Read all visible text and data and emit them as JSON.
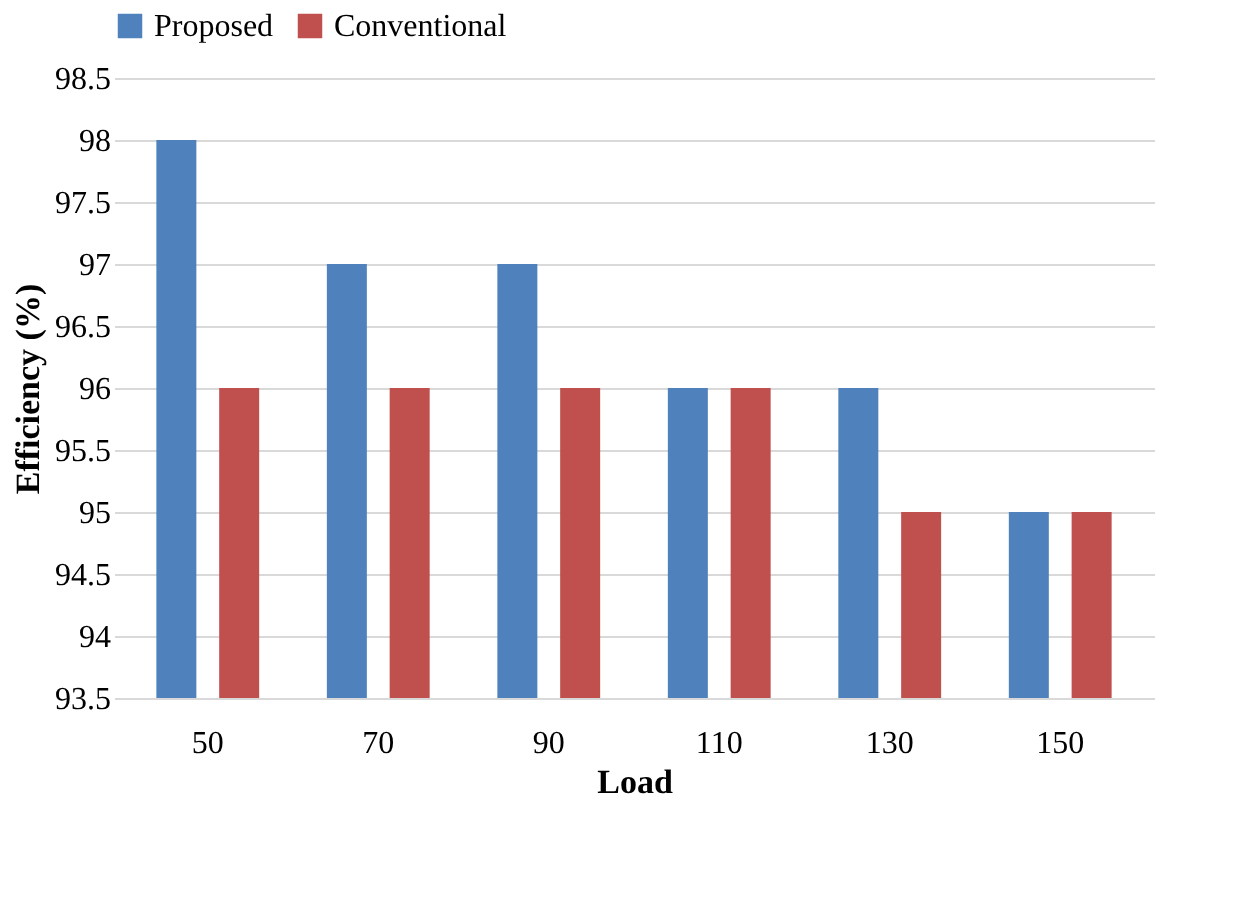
{
  "chart_data": {
    "type": "bar",
    "xlabel": "Load",
    "ylabel": "Efficiency (%)",
    "categories": [
      "50",
      "70",
      "90",
      "110",
      "130",
      "150"
    ],
    "series": [
      {
        "name": "Proposed",
        "color": "#4f81bd",
        "values": [
          98,
          97,
          97,
          96,
          96,
          95
        ]
      },
      {
        "name": "Conventional",
        "color": "#c0504d",
        "values": [
          96,
          96,
          96,
          96,
          95,
          95
        ]
      }
    ],
    "ylim": [
      93.5,
      98.5
    ],
    "yticks": [
      93.5,
      94,
      94.5,
      95,
      95.5,
      96,
      96.5,
      97,
      97.5,
      98,
      98.5
    ],
    "grid": "y",
    "legend": "top"
  }
}
